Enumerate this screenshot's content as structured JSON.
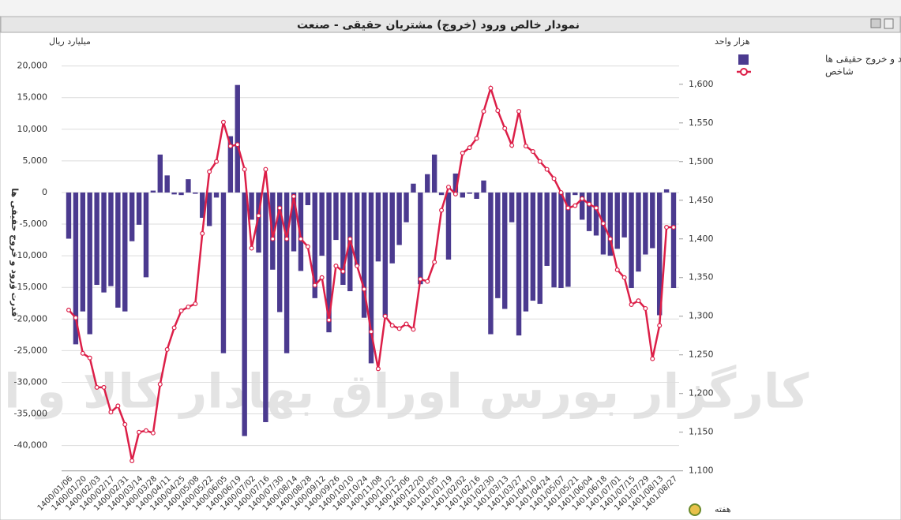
{
  "chart_data": {
    "type": "bar-line",
    "title": "نمودار خالص ورود (خروج) مشتریان حقیقی - صنعت",
    "y_unit": "میلیارد ریال",
    "y2_unit": "هزار واحد",
    "y_label": "قدرت ورود و خروج حقیقی ها",
    "x_label": "هفته",
    "watermark": "کارگزار بورس اوراق بهادار کالا و انرژی",
    "categories": [
      "1400/01/06",
      null,
      "1400/01/20",
      null,
      "1400/02/03",
      null,
      "1400/02/17",
      null,
      "1400/02/31",
      null,
      "1400/03/14",
      null,
      "1400/03/28",
      null,
      "1400/04/11",
      null,
      "1400/04/25",
      null,
      "1400/05/08",
      null,
      "1400/05/22",
      null,
      "1400/06/05",
      null,
      "1400/06/19",
      null,
      "1400/07/02",
      null,
      "1400/07/16",
      null,
      "1400/07/30",
      null,
      "1400/08/14",
      null,
      "1400/08/28",
      null,
      "1400/09/12",
      null,
      "1400/09/26",
      null,
      "1400/10/10",
      null,
      "1400/10/24",
      null,
      "1400/11/08",
      null,
      "1400/11/22",
      null,
      "1400/12/06",
      null,
      "1400/12/20",
      null,
      "1401/01/05",
      null,
      "1401/01/19",
      null,
      "1401/02/02",
      null,
      "1401/02/16",
      null,
      "1401/02/30",
      null,
      "1401/03/13",
      null,
      "1401/03/27",
      null,
      "1401/04/10",
      null,
      "1401/04/24",
      null,
      "1401/05/07",
      null,
      "1401/05/21",
      null,
      "1401/06/04",
      null,
      "1401/06/18",
      null,
      "1401/07/01",
      null,
      "1401/07/15",
      null,
      "1401/07/29",
      null,
      "1401/08/13",
      null,
      "1401/08/27"
    ],
    "series": [
      {
        "name": "قدرت ورود و خروج حقیقی ها",
        "color": "#4b3a8f",
        "axis": "y",
        "values": [
          -7300,
          -24000,
          -18800,
          -22400,
          -14600,
          -15800,
          -14800,
          -18200,
          -18800,
          -7700,
          -5100,
          -13400,
          300,
          6000,
          2700,
          -300,
          -400,
          2100,
          -200,
          -4000,
          -5300,
          -800,
          -25400,
          8900,
          17000,
          -38500,
          -4300,
          -9500,
          -36300,
          -12200,
          -18900,
          -25400,
          -9300,
          -12400,
          -2000,
          -16700,
          -10000,
          -22100,
          -7500,
          -14600,
          -15600,
          -11600,
          -19800,
          -27000,
          -10900,
          -19700,
          -11200,
          -8300,
          -4700,
          1400,
          -14500,
          2900,
          6000,
          -400,
          -10600,
          3000,
          -800,
          -200,
          -1000,
          1900,
          -22400,
          -16700,
          -18400,
          -4700,
          -22600,
          -18800,
          -17100,
          -17600,
          -11600,
          -15000,
          -15100,
          -14900,
          -400,
          -4300,
          -6100,
          -6800,
          -9800,
          -10000,
          -8900,
          -7100,
          -15100,
          -12500,
          -9800,
          -8800,
          -19400,
          500,
          -15100
        ]
      },
      {
        "name": "شاخص",
        "color": "#dc1f48",
        "axis": "y2",
        "values": [
          1308,
          1298,
          1252,
          1246,
          1208,
          1208,
          1176,
          1184,
          1160,
          1113,
          1150,
          1152,
          1149,
          1212,
          1257,
          1285,
          1307,
          1312,
          1316,
          1407,
          1487,
          1500,
          1551,
          1520,
          1522,
          1490,
          1388,
          1430,
          1490,
          1400,
          1440,
          1400,
          1455,
          1400,
          1390,
          1340,
          1350,
          1295,
          1365,
          1358,
          1400,
          1365,
          1335,
          1280,
          1232,
          1300,
          1288,
          1284,
          1290,
          1283,
          1348,
          1345,
          1370,
          1437,
          1467,
          1458,
          1511,
          1518,
          1530,
          1565,
          1595,
          1566,
          1543,
          1521,
          1565,
          1520,
          1513,
          1500,
          1490,
          1478,
          1460,
          1440,
          1443,
          1452,
          1445,
          1440,
          1420,
          1400,
          1360,
          1350,
          1315,
          1320,
          1310,
          1245,
          1288,
          1415,
          1415
        ]
      }
    ],
    "ylim": [
      -44000,
      22000
    ],
    "yticks": [
      {
        "value": -40000,
        "label": "-40,000"
      },
      {
        "value": -35000,
        "label": "-35,000"
      },
      {
        "value": -30000,
        "label": "-30,000"
      },
      {
        "value": -25000,
        "label": "-25,000"
      },
      {
        "value": -20000,
        "label": "-20,000"
      },
      {
        "value": -15000,
        "label": "-15,000"
      },
      {
        "value": -10000,
        "label": "-10,000"
      },
      {
        "value": -5000,
        "label": "-5,000"
      },
      0,
      {
        "value": 5000,
        "label": "5,000"
      },
      {
        "value": 10000,
        "label": "10,000"
      },
      {
        "value": 15000,
        "label": "15,000"
      },
      {
        "value": 20000,
        "label": "20,000"
      }
    ],
    "y2lim": [
      1100,
      1640
    ],
    "y2ticks": [
      {
        "value": 1100,
        "label": "1,100"
      },
      {
        "value": 1150,
        "label": "1,150"
      },
      {
        "value": 1200,
        "label": "1,200"
      },
      {
        "value": 1250,
        "label": "1,250"
      },
      {
        "value": 1300,
        "label": "1,300"
      },
      {
        "value": 1350,
        "label": "1,350"
      },
      {
        "value": 1400,
        "label": "1,400"
      },
      {
        "value": 1450,
        "label": "1,450"
      },
      {
        "value": 1500,
        "label": "1,500"
      },
      {
        "value": 1550,
        "label": "1,550"
      },
      {
        "value": 1600,
        "label": "1,600"
      }
    ],
    "grid": true,
    "legend": "right"
  }
}
